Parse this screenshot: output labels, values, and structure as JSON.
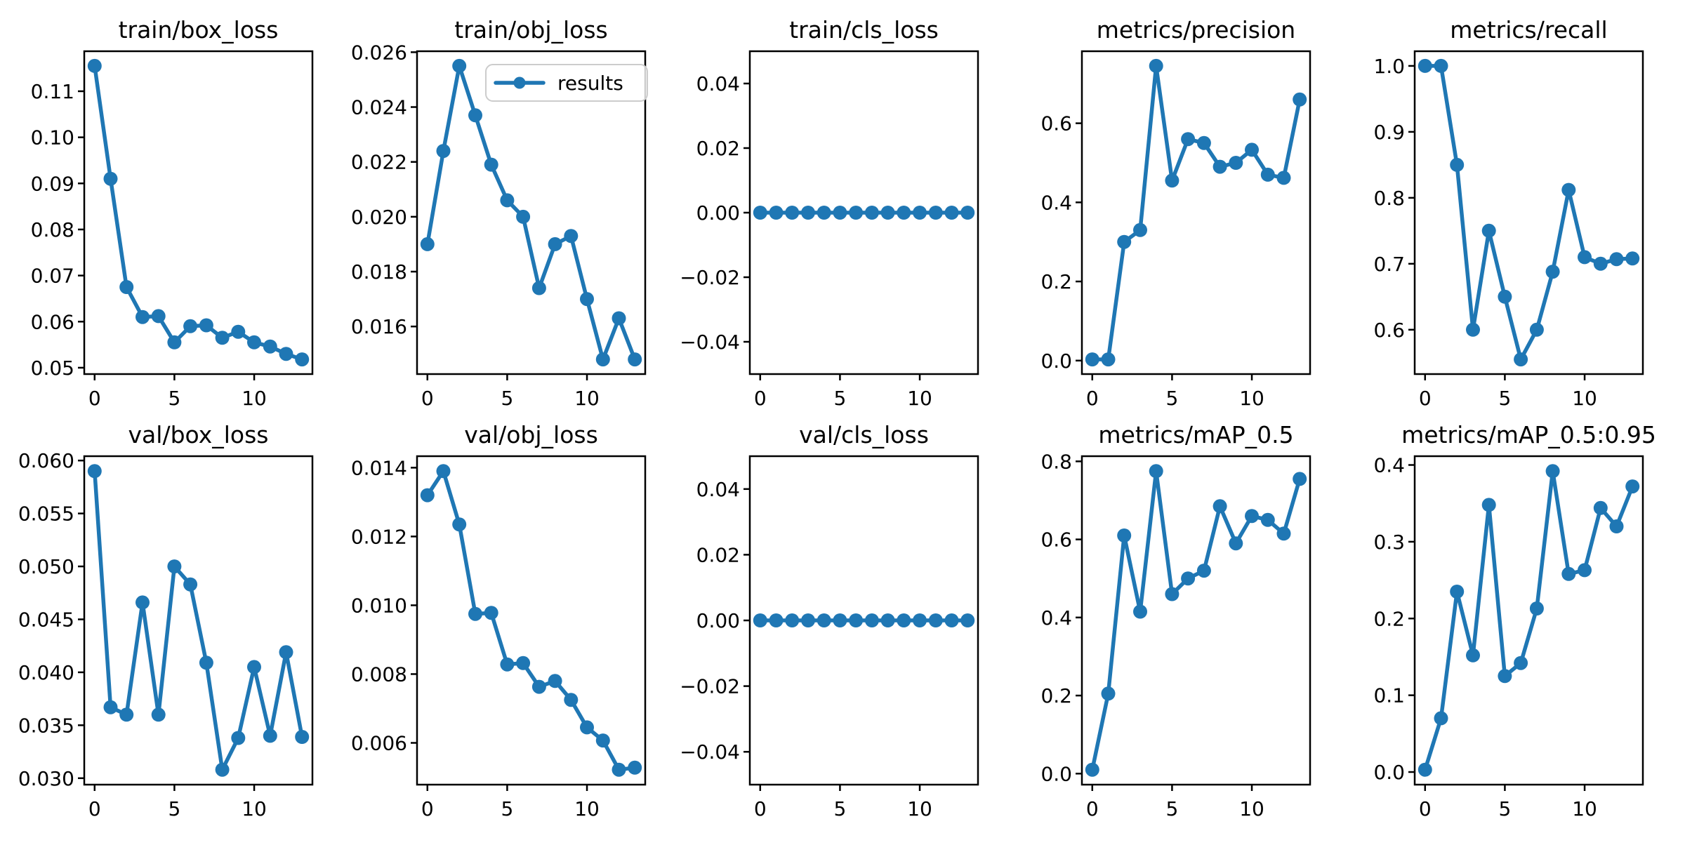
{
  "figure": {
    "background": "#ffffff",
    "accent_color": "#1f77b4",
    "axis_color": "#000000",
    "legend": {
      "label": "results",
      "attached_to": "train/obj_loss",
      "position": "upper right"
    }
  },
  "chart_data": [
    {
      "type": "line",
      "title": "train/box_loss",
      "x": [
        0,
        1,
        2,
        3,
        4,
        5,
        6,
        7,
        8,
        9,
        10,
        11,
        12,
        13
      ],
      "y": [
        0.1155,
        0.091,
        0.0675,
        0.061,
        0.0612,
        0.0555,
        0.059,
        0.0592,
        0.0565,
        0.0578,
        0.0555,
        0.0546,
        0.053,
        0.0518
      ],
      "ylim": [
        0.04862,
        0.11868
      ],
      "yticks": [
        {
          "v": 0.05,
          "label": "0.05"
        },
        {
          "v": 0.06,
          "label": "0.06"
        },
        {
          "v": 0.07,
          "label": "0.07"
        },
        {
          "v": 0.08,
          "label": "0.08"
        },
        {
          "v": 0.09,
          "label": "0.09"
        },
        {
          "v": 0.1,
          "label": "0.10"
        },
        {
          "v": 0.11,
          "label": "0.11"
        }
      ],
      "xticks": [
        {
          "v": 0,
          "label": "0"
        },
        {
          "v": 5,
          "label": "5"
        },
        {
          "v": 10,
          "label": "10"
        }
      ]
    },
    {
      "type": "line",
      "title": "train/obj_loss",
      "x": [
        0,
        1,
        2,
        3,
        4,
        5,
        6,
        7,
        8,
        9,
        10,
        11,
        12,
        13
      ],
      "y": [
        0.019,
        0.0224,
        0.0255,
        0.0237,
        0.0219,
        0.0206,
        0.02,
        0.0174,
        0.019,
        0.0193,
        0.017,
        0.0148,
        0.0163,
        0.0148
      ],
      "ylim": [
        0.014265,
        0.026035
      ],
      "yticks": [
        {
          "v": 0.016,
          "label": "0.016"
        },
        {
          "v": 0.018,
          "label": "0.018"
        },
        {
          "v": 0.02,
          "label": "0.020"
        },
        {
          "v": 0.022,
          "label": "0.022"
        },
        {
          "v": 0.024,
          "label": "0.024"
        },
        {
          "v": 0.026,
          "label": "0.026"
        }
      ],
      "xticks": [
        {
          "v": 0,
          "label": "0"
        },
        {
          "v": 5,
          "label": "5"
        },
        {
          "v": 10,
          "label": "10"
        }
      ],
      "has_legend": true
    },
    {
      "type": "line",
      "title": "train/cls_loss",
      "x": [
        0,
        1,
        2,
        3,
        4,
        5,
        6,
        7,
        8,
        9,
        10,
        11,
        12,
        13
      ],
      "y": [
        0,
        0,
        0,
        0,
        0,
        0,
        0,
        0,
        0,
        0,
        0,
        0,
        0,
        0
      ],
      "ylim": [
        -0.05,
        0.05
      ],
      "yticks": [
        {
          "v": -0.04,
          "label": "−0.04"
        },
        {
          "v": -0.02,
          "label": "−0.02"
        },
        {
          "v": 0.0,
          "label": "0.00"
        },
        {
          "v": 0.02,
          "label": "0.02"
        },
        {
          "v": 0.04,
          "label": "0.04"
        }
      ],
      "xticks": [
        {
          "v": 0,
          "label": "0"
        },
        {
          "v": 5,
          "label": "5"
        },
        {
          "v": 10,
          "label": "10"
        }
      ]
    },
    {
      "type": "line",
      "title": "metrics/precision",
      "x": [
        0,
        1,
        2,
        3,
        4,
        5,
        6,
        7,
        8,
        9,
        10,
        11,
        12,
        13
      ],
      "y": [
        0.003,
        0.003,
        0.3,
        0.33,
        0.745,
        0.455,
        0.56,
        0.55,
        0.49,
        0.5,
        0.533,
        0.47,
        0.462,
        0.66
      ],
      "ylim": [
        -0.0341,
        0.7821
      ],
      "yticks": [
        {
          "v": 0.0,
          "label": "0.0"
        },
        {
          "v": 0.2,
          "label": "0.2"
        },
        {
          "v": 0.4,
          "label": "0.4"
        },
        {
          "v": 0.6,
          "label": "0.6"
        }
      ],
      "xticks": [
        {
          "v": 0,
          "label": "0"
        },
        {
          "v": 5,
          "label": "5"
        },
        {
          "v": 10,
          "label": "10"
        }
      ]
    },
    {
      "type": "line",
      "title": "metrics/recall",
      "x": [
        0,
        1,
        2,
        3,
        4,
        5,
        6,
        7,
        8,
        9,
        10,
        11,
        12,
        13
      ],
      "y": [
        1.0,
        1.0,
        0.85,
        0.6,
        0.75,
        0.65,
        0.555,
        0.6,
        0.688,
        0.812,
        0.71,
        0.7,
        0.707,
        0.708
      ],
      "ylim": [
        0.53275,
        1.02225
      ],
      "yticks": [
        {
          "v": 0.6,
          "label": "0.6"
        },
        {
          "v": 0.7,
          "label": "0.7"
        },
        {
          "v": 0.8,
          "label": "0.8"
        },
        {
          "v": 0.9,
          "label": "0.9"
        },
        {
          "v": 1.0,
          "label": "1.0"
        }
      ],
      "xticks": [
        {
          "v": 0,
          "label": "0"
        },
        {
          "v": 5,
          "label": "5"
        },
        {
          "v": 10,
          "label": "10"
        }
      ]
    },
    {
      "type": "line",
      "title": "val/box_loss",
      "x": [
        0,
        1,
        2,
        3,
        4,
        5,
        6,
        7,
        8,
        9,
        10,
        11,
        12,
        13
      ],
      "y": [
        0.059,
        0.0367,
        0.036,
        0.0466,
        0.036,
        0.05,
        0.0483,
        0.0409,
        0.0308,
        0.0338,
        0.0405,
        0.034,
        0.0419,
        0.0339
      ],
      "ylim": [
        0.02939,
        0.06041
      ],
      "yticks": [
        {
          "v": 0.03,
          "label": "0.030"
        },
        {
          "v": 0.035,
          "label": "0.035"
        },
        {
          "v": 0.04,
          "label": "0.040"
        },
        {
          "v": 0.045,
          "label": "0.045"
        },
        {
          "v": 0.05,
          "label": "0.050"
        },
        {
          "v": 0.055,
          "label": "0.055"
        },
        {
          "v": 0.06,
          "label": "0.060"
        }
      ],
      "xticks": [
        {
          "v": 0,
          "label": "0"
        },
        {
          "v": 5,
          "label": "5"
        },
        {
          "v": 10,
          "label": "10"
        }
      ]
    },
    {
      "type": "line",
      "title": "val/obj_loss",
      "x": [
        0,
        1,
        2,
        3,
        4,
        5,
        6,
        7,
        8,
        9,
        10,
        11,
        12,
        13
      ],
      "y": [
        0.0132,
        0.0139,
        0.01235,
        0.00975,
        0.00978,
        0.00828,
        0.00832,
        0.00763,
        0.0078,
        0.00725,
        0.00645,
        0.00607,
        0.00522,
        0.00528
      ],
      "ylim": [
        0.004786,
        0.014334
      ],
      "yticks": [
        {
          "v": 0.006,
          "label": "0.006"
        },
        {
          "v": 0.008,
          "label": "0.008"
        },
        {
          "v": 0.01,
          "label": "0.010"
        },
        {
          "v": 0.012,
          "label": "0.012"
        },
        {
          "v": 0.014,
          "label": "0.014"
        }
      ],
      "xticks": [
        {
          "v": 0,
          "label": "0"
        },
        {
          "v": 5,
          "label": "5"
        },
        {
          "v": 10,
          "label": "10"
        }
      ]
    },
    {
      "type": "line",
      "title": "val/cls_loss",
      "x": [
        0,
        1,
        2,
        3,
        4,
        5,
        6,
        7,
        8,
        9,
        10,
        11,
        12,
        13
      ],
      "y": [
        0,
        0,
        0,
        0,
        0,
        0,
        0,
        0,
        0,
        0,
        0,
        0,
        0,
        0
      ],
      "ylim": [
        -0.05,
        0.05
      ],
      "yticks": [
        {
          "v": -0.04,
          "label": "−0.04"
        },
        {
          "v": -0.02,
          "label": "−0.02"
        },
        {
          "v": 0.0,
          "label": "0.00"
        },
        {
          "v": 0.02,
          "label": "0.02"
        },
        {
          "v": 0.04,
          "label": "0.04"
        }
      ],
      "xticks": [
        {
          "v": 0,
          "label": "0"
        },
        {
          "v": 5,
          "label": "5"
        },
        {
          "v": 10,
          "label": "10"
        }
      ]
    },
    {
      "type": "line",
      "title": "metrics/mAP_0.5",
      "x": [
        0,
        1,
        2,
        3,
        4,
        5,
        6,
        7,
        8,
        9,
        10,
        11,
        12,
        13
      ],
      "y": [
        0.01,
        0.205,
        0.61,
        0.415,
        0.775,
        0.46,
        0.5,
        0.52,
        0.685,
        0.59,
        0.66,
        0.65,
        0.615,
        0.755
      ],
      "ylim": [
        -0.02825,
        0.81325
      ],
      "yticks": [
        {
          "v": 0.0,
          "label": "0.0"
        },
        {
          "v": 0.2,
          "label": "0.2"
        },
        {
          "v": 0.4,
          "label": "0.4"
        },
        {
          "v": 0.6,
          "label": "0.6"
        },
        {
          "v": 0.8,
          "label": "0.8"
        }
      ],
      "xticks": [
        {
          "v": 0,
          "label": "0"
        },
        {
          "v": 5,
          "label": "5"
        },
        {
          "v": 10,
          "label": "10"
        }
      ]
    },
    {
      "type": "line",
      "title": "metrics/mAP_0.5:0.95",
      "x": [
        0,
        1,
        2,
        3,
        4,
        5,
        6,
        7,
        8,
        9,
        10,
        11,
        12,
        13
      ],
      "y": [
        0.003,
        0.07,
        0.235,
        0.152,
        0.348,
        0.125,
        0.142,
        0.213,
        0.392,
        0.258,
        0.263,
        0.344,
        0.32,
        0.372
      ],
      "ylim": [
        -0.01645,
        0.41145
      ],
      "yticks": [
        {
          "v": 0.0,
          "label": "0.0"
        },
        {
          "v": 0.1,
          "label": "0.1"
        },
        {
          "v": 0.2,
          "label": "0.2"
        },
        {
          "v": 0.3,
          "label": "0.3"
        },
        {
          "v": 0.4,
          "label": "0.4"
        }
      ],
      "xticks": [
        {
          "v": 0,
          "label": "0"
        },
        {
          "v": 5,
          "label": "5"
        },
        {
          "v": 10,
          "label": "10"
        }
      ]
    }
  ]
}
